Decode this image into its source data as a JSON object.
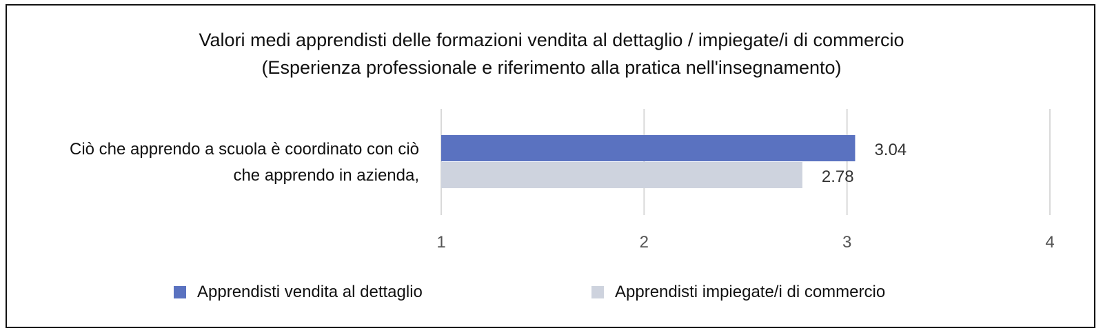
{
  "chart_data": {
    "type": "bar",
    "orientation": "horizontal",
    "title": "Valori medi apprendisti delle formazioni vendita al dettaglio / impiegate/i di commercio",
    "subtitle": "(Esperienza professionale e riferimento alla pratica nell'insegnamento)",
    "categories": [
      "Ciò che apprendo a scuola è coordinato con ciò che apprendo in azienda,"
    ],
    "category_lines": [
      "Ciò che apprendo a scuola è coordinato con ciò",
      "che apprendo in azienda,"
    ],
    "series": [
      {
        "name": "Apprendisti vendita al dettaglio",
        "values": [
          3.04
        ],
        "labels": [
          "3.04"
        ],
        "color": "#5a72c0"
      },
      {
        "name": "Apprendisti impiegate/i di commercio",
        "values": [
          2.78
        ],
        "labels": [
          "2.78"
        ],
        "color": "#ced3de"
      }
    ],
    "xlim": [
      1,
      4
    ],
    "xticks": [
      "1",
      "2",
      "3",
      "4"
    ],
    "grid": true,
    "legend": "bottom"
  }
}
